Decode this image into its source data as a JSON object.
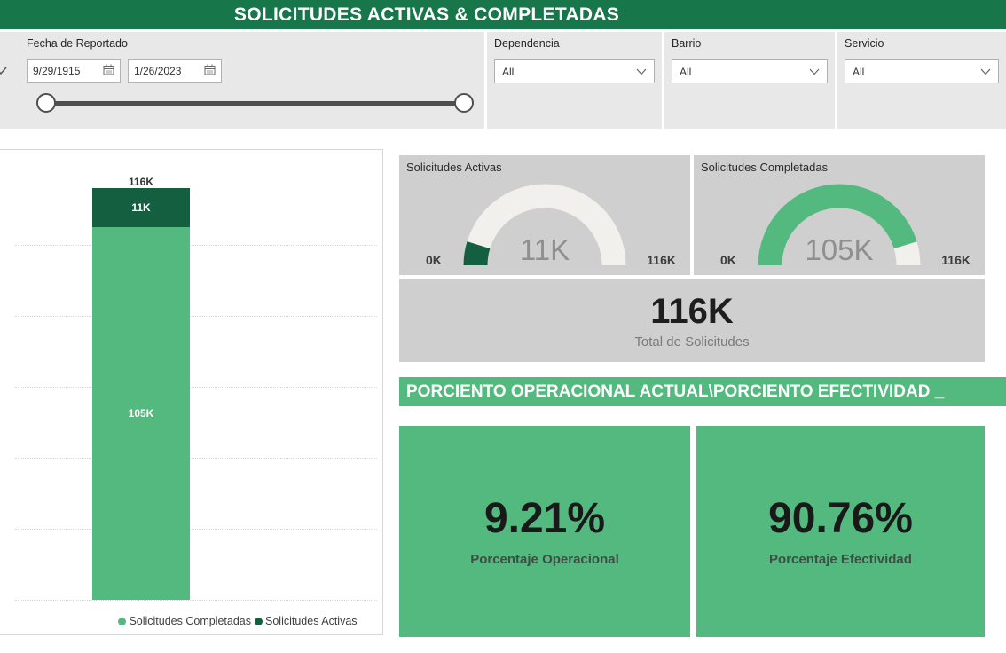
{
  "header": {
    "title": "SOLICITUDES ACTIVAS & COMPLETADAS"
  },
  "filters": {
    "date": {
      "label": "Fecha de Reportado",
      "start": "9/29/1915",
      "end": "1/26/2023"
    },
    "dependencia": {
      "label": "Dependencia",
      "value": "All"
    },
    "barrio": {
      "label": "Barrio",
      "value": "All"
    },
    "servicio": {
      "label": "Servicio",
      "value": "All"
    }
  },
  "chart_data": [
    {
      "type": "bar",
      "stacked": true,
      "categories": [
        ""
      ],
      "series": [
        {
          "name": "Solicitudes Completadas",
          "values": [
            105000
          ],
          "label": "105K",
          "color": "#54b97f"
        },
        {
          "name": "Solicitudes Activas",
          "values": [
            11000
          ],
          "label": "11K",
          "color": "#155f41"
        }
      ],
      "total": 116000,
      "total_label": "116K",
      "ylim": [
        0,
        116000
      ],
      "grid": true,
      "legend_position": "bottom"
    },
    {
      "type": "gauge",
      "title": "Solicitudes Activas",
      "value": 11000,
      "value_label": "11K",
      "min": 0,
      "max": 116000,
      "min_label": "0K",
      "max_label": "116K",
      "fill_color": "#155f41",
      "track_color": "#f2f0ec"
    },
    {
      "type": "gauge",
      "title": "Solicitudes Completadas",
      "value": 105000,
      "value_label": "105K",
      "min": 0,
      "max": 116000,
      "min_label": "0K",
      "max_label": "116K",
      "fill_color": "#54b97f",
      "track_color": "#f2f0ec"
    }
  ],
  "totals": {
    "value": "116K",
    "caption": "Total de Solicitudes"
  },
  "section_title": "PORCIENTO OPERACIONAL ACTUAL\\PORCIENTO EFECTIVIDAD _",
  "kpis": [
    {
      "value": "9.21%",
      "label": "Porcentaje Operacional"
    },
    {
      "value": "90.76%",
      "label": "Porcentaje Efectividad"
    }
  ],
  "colors": {
    "dark_green": "#17764a",
    "light_green": "#54b97f",
    "panel_gray": "#cfcfcf",
    "filter_gray": "#e8e8e8"
  }
}
